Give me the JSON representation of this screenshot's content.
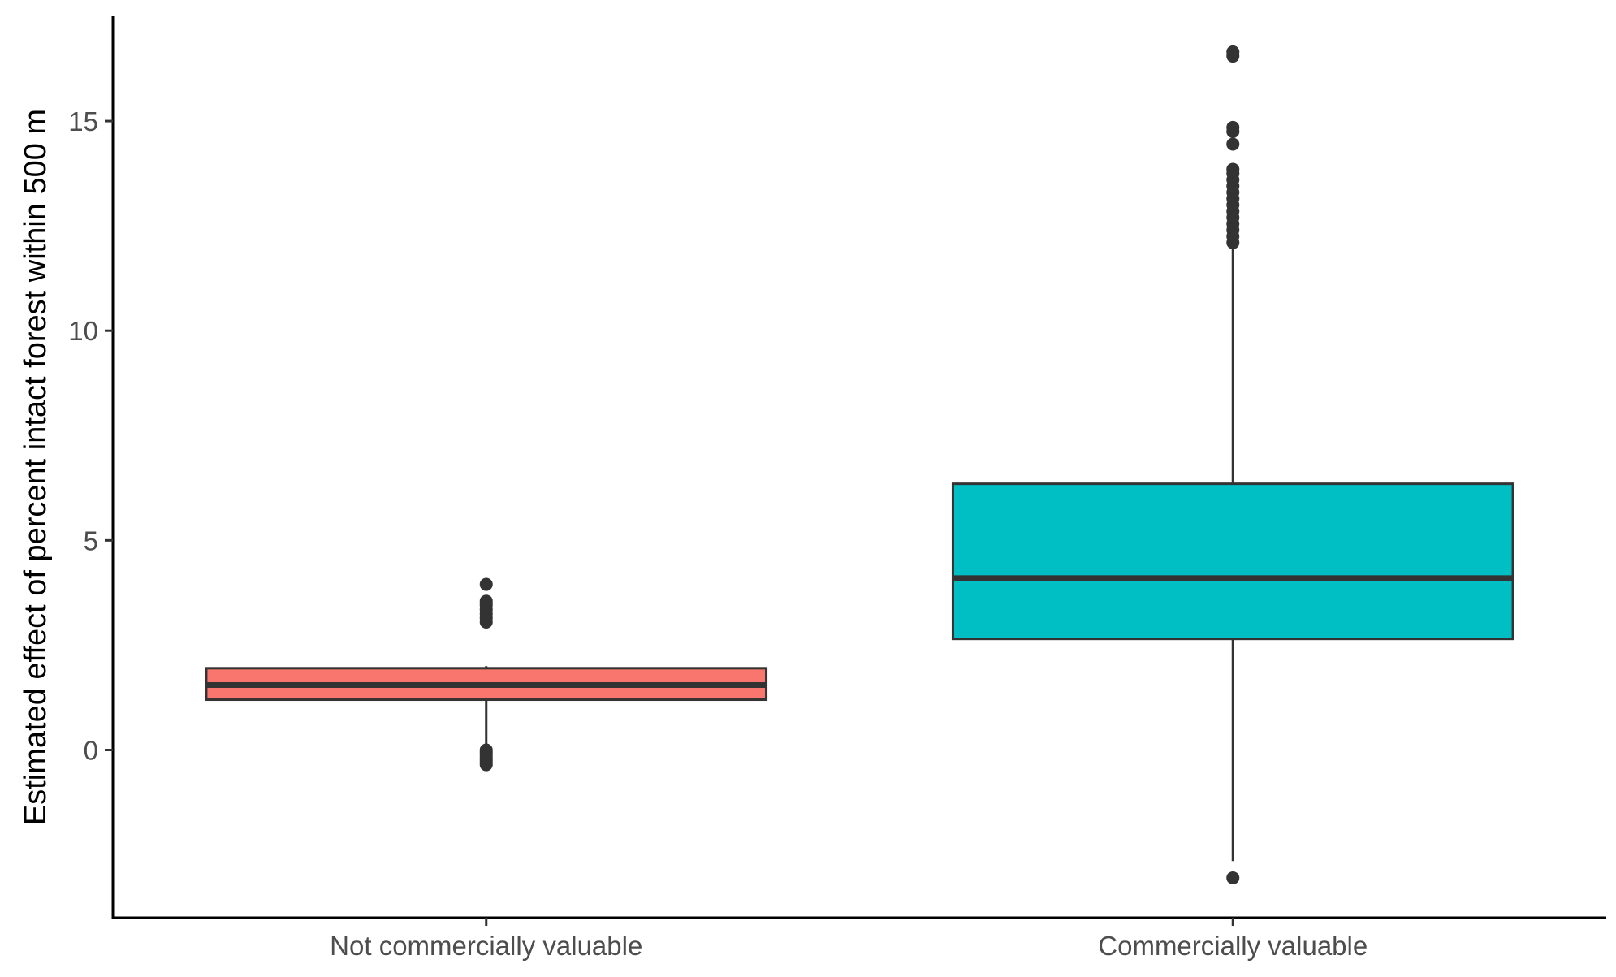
{
  "chart_data": {
    "type": "boxplot",
    "title": "",
    "xlabel": "",
    "ylabel": "Estimated effect of percent intact forest within 500 m",
    "ylim": [
      -4,
      17.5
    ],
    "y_ticks": [
      0,
      5,
      10,
      15
    ],
    "grid": false,
    "legend": "none",
    "categories": [
      "Not commercially valuable",
      "Commercially valuable"
    ],
    "boxes": [
      {
        "category": "Not commercially valuable",
        "color": "#f8766d",
        "whisker_low": 0.05,
        "q1": 1.2,
        "median": 1.55,
        "q3": 1.95,
        "whisker_high": 2.0,
        "outliers": [
          -0.35,
          -0.3,
          -0.25,
          -0.2,
          -0.15,
          -0.1,
          -0.05,
          0.0,
          3.05,
          3.15,
          3.25,
          3.35,
          3.45,
          3.5,
          3.55,
          3.95
        ]
      },
      {
        "category": "Commercially valuable",
        "color": "#00bfc4",
        "whisker_low": -2.65,
        "q1": 2.65,
        "median": 4.1,
        "q3": 6.35,
        "whisker_high": 12.0,
        "outliers": [
          -3.05,
          12.1,
          12.25,
          12.4,
          12.55,
          12.7,
          12.85,
          13.0,
          13.15,
          13.3,
          13.45,
          13.6,
          13.75,
          13.85,
          14.45,
          14.75,
          14.85,
          16.55,
          16.65
        ]
      }
    ]
  }
}
